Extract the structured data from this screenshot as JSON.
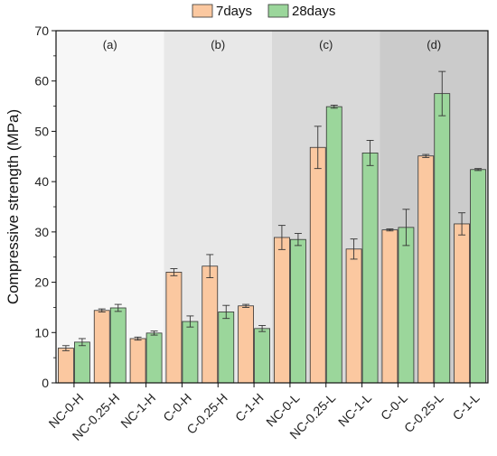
{
  "chart_data": {
    "type": "bar",
    "ylabel": "Compressive strength (MPa)",
    "ylim": [
      0,
      70
    ],
    "yticks": [
      0,
      10,
      20,
      30,
      40,
      50,
      60,
      70
    ],
    "categories": [
      "NC-0-H",
      "NC-0.25-H",
      "NC-1-H",
      "C-0-H",
      "C-0.25-H",
      "C-1-H",
      "NC-0-L",
      "NC-0.25-L",
      "NC-1-L",
      "C-0-L",
      "C-0.25-L",
      "C-1-L"
    ],
    "series": [
      {
        "name": "7days",
        "color": "#FBC8A0",
        "values": [
          6.9,
          14.4,
          8.8,
          22.0,
          23.2,
          15.3,
          28.9,
          46.8,
          26.6,
          30.4,
          45.1,
          31.6
        ],
        "errors": [
          0.5,
          0.3,
          0.3,
          0.7,
          2.3,
          0.3,
          2.4,
          4.2,
          2.0,
          0.2,
          0.3,
          2.2
        ]
      },
      {
        "name": "28days",
        "color": "#9BD69B",
        "values": [
          8.1,
          14.9,
          9.9,
          12.2,
          14.1,
          10.8,
          28.5,
          54.9,
          45.7,
          30.9,
          57.5,
          42.4
        ],
        "errors": [
          0.7,
          0.7,
          0.4,
          1.1,
          1.3,
          0.6,
          1.2,
          0.3,
          2.5,
          3.6,
          4.4,
          0.2
        ]
      }
    ],
    "panels": [
      {
        "label": "(a)",
        "color": "#F7F7F7"
      },
      {
        "label": "(b)",
        "color": "#E8E8E8"
      },
      {
        "label": "(c)",
        "color": "#D9D9D9"
      },
      {
        "label": "(d)",
        "color": "#CBCBCB"
      }
    ],
    "legend_position": "top-center",
    "grid": false
  }
}
